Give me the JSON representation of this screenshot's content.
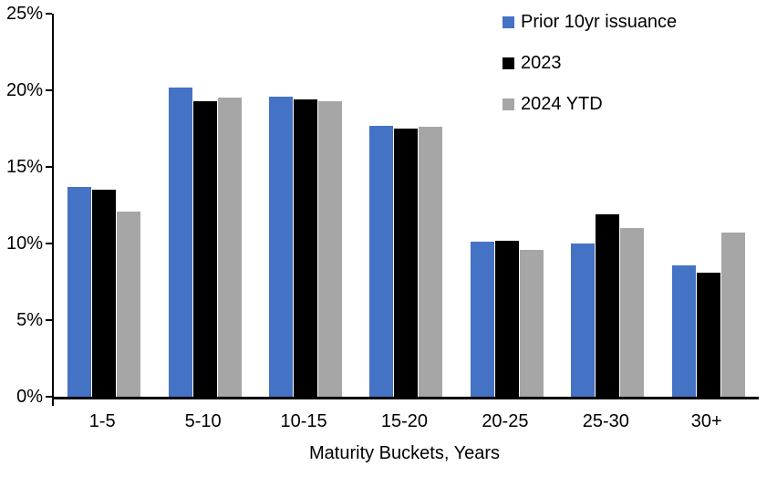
{
  "chart_data": {
    "type": "bar",
    "categories": [
      "1-5",
      "5-10",
      "10-15",
      "15-20",
      "20-25",
      "25-30",
      "30+"
    ],
    "series": [
      {
        "name": "Prior 10yr issuance",
        "color": "#4472C4",
        "values": [
          13.7,
          20.2,
          19.6,
          17.7,
          10.1,
          10.0,
          8.6
        ]
      },
      {
        "name": "2023",
        "color": "#000000",
        "values": [
          13.5,
          19.3,
          19.4,
          17.5,
          10.2,
          11.9,
          8.1
        ]
      },
      {
        "name": "2024 YTD",
        "color": "#A6A6A6",
        "values": [
          12.1,
          19.5,
          19.3,
          17.6,
          9.6,
          11.0,
          10.7
        ]
      }
    ],
    "xlabel": "Maturity Buckets, Years",
    "ylim": [
      0,
      25
    ],
    "yticks": [
      0,
      5,
      10,
      15,
      20,
      25
    ],
    "ytick_labels": [
      "0%",
      "5%",
      "10%",
      "15%",
      "20%",
      "25%"
    ],
    "grid": false,
    "legend_position": "top-right",
    "colors": {
      "background": "#FFFFFF",
      "axis": "#000000"
    }
  }
}
